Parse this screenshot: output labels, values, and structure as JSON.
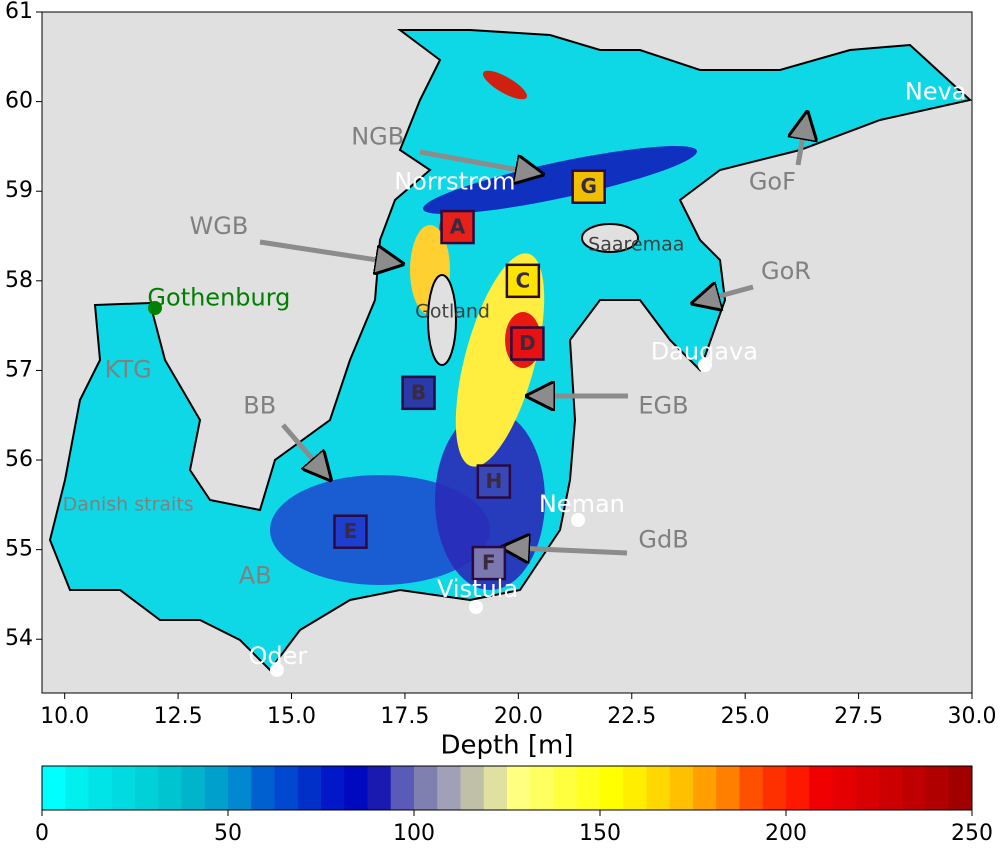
{
  "map": {
    "xlim": [
      9.5,
      30.0
    ],
    "ylim": [
      53.4,
      61.0
    ],
    "xticks": [
      {
        "value": 10,
        "label": "10.0"
      },
      {
        "value": 12.5,
        "label": "12.5"
      },
      {
        "value": 15,
        "label": "15.0"
      },
      {
        "value": 17.5,
        "label": "17.5"
      },
      {
        "value": 20,
        "label": "20.0"
      },
      {
        "value": 22.5,
        "label": "22.5"
      },
      {
        "value": 25,
        "label": "25.0"
      },
      {
        "value": 27.5,
        "label": "27.5"
      },
      {
        "value": 30,
        "label": "30.0"
      }
    ],
    "yticks": [
      54,
      55,
      56,
      57,
      58,
      59,
      60,
      61
    ],
    "labels": [
      {
        "text": "Neva",
        "lon": 29.2,
        "lat": 60.1,
        "color": "#ffffff"
      },
      {
        "text": "NGB",
        "lon": 16.9,
        "lat": 59.6,
        "color": "#808080"
      },
      {
        "text": "GoF",
        "lon": 25.6,
        "lat": 59.1,
        "color": "#808080"
      },
      {
        "text": "Norrstrom",
        "lon": 18.6,
        "lat": 59.1,
        "color": "#ffffff"
      },
      {
        "text": "WGB",
        "lon": 13.4,
        "lat": 58.6,
        "color": "#808080"
      },
      {
        "text": "Saaremaa",
        "lon": 22.6,
        "lat": 58.4,
        "color": "#404040"
      },
      {
        "text": "GoR",
        "lon": 25.9,
        "lat": 58.1,
        "color": "#808080"
      },
      {
        "text": "Gothenburg",
        "lon": 13.4,
        "lat": 57.8,
        "color": "#008000"
      },
      {
        "text": "Gotland",
        "lon": 18.55,
        "lat": 57.65,
        "color": "#404040"
      },
      {
        "text": "Daugava",
        "lon": 24.1,
        "lat": 57.2,
        "color": "#ffffff"
      },
      {
        "text": "KTG",
        "lon": 11.4,
        "lat": 57.0,
        "color": "#808080"
      },
      {
        "text": "BB",
        "lon": 14.3,
        "lat": 56.6,
        "color": "#808080"
      },
      {
        "text": "EGB",
        "lon": 23.2,
        "lat": 56.6,
        "color": "#808080"
      },
      {
        "text": "Danish straits",
        "lon": 11.4,
        "lat": 55.5,
        "color": "#808080"
      },
      {
        "text": "Neman",
        "lon": 21.4,
        "lat": 55.5,
        "color": "#ffffff"
      },
      {
        "text": "GdB",
        "lon": 23.2,
        "lat": 55.1,
        "color": "#808080"
      },
      {
        "text": "AB",
        "lon": 14.2,
        "lat": 54.7,
        "color": "#808080"
      },
      {
        "text": "Vistula",
        "lon": 19.1,
        "lat": 54.55,
        "color": "#ffffff"
      },
      {
        "text": "Oder",
        "lon": 14.7,
        "lat": 53.8,
        "color": "#ffffff"
      }
    ],
    "boxes": [
      {
        "text": "A",
        "lon": 18.66,
        "lat": 58.6,
        "fill": "#e8201a"
      },
      {
        "text": "B",
        "lon": 17.8,
        "lat": 56.75,
        "fill": "#2a3aa8"
      },
      {
        "text": "C",
        "lon": 20.1,
        "lat": 58.0,
        "fill": "#ffe400"
      },
      {
        "text": "D",
        "lon": 20.2,
        "lat": 57.3,
        "fill": "#e81010"
      },
      {
        "text": "E",
        "lon": 16.3,
        "lat": 55.2,
        "fill": "#1d3fd0"
      },
      {
        "text": "F",
        "lon": 19.35,
        "lat": 54.85,
        "fill": "#7b78b0"
      },
      {
        "text": "G",
        "lon": 21.55,
        "lat": 59.05,
        "fill": "#f0c000"
      },
      {
        "text": "H",
        "lon": 19.46,
        "lat": 55.76,
        "fill": "#3848b8"
      }
    ]
  },
  "colorbar": {
    "label": "Depth [m]",
    "lim": [
      0,
      250
    ],
    "ticks": [
      0,
      50,
      100,
      150,
      200,
      250
    ],
    "colors": [
      "#00ffff",
      "#00f0f0",
      "#00e4e8",
      "#00dae0",
      "#00d0d8",
      "#00c4d0",
      "#00b4cc",
      "#00a0cc",
      "#0088d0",
      "#0060d0",
      "#0048d0",
      "#0030c8",
      "#0018c8",
      "#0008c0",
      "#1a1ab0",
      "#5a5ab8",
      "#8080b0",
      "#a0a0b8",
      "#c0c0a8",
      "#e0e0a0",
      "#ffff80",
      "#ffff60",
      "#ffff40",
      "#ffff20",
      "#ffff00",
      "#ffee00",
      "#ffd800",
      "#ffc000",
      "#ffa000",
      "#ff8000",
      "#ff5000",
      "#ff3000",
      "#ff1800",
      "#f00000",
      "#e40000",
      "#d80000",
      "#cc0000",
      "#c00000",
      "#b00000",
      "#a00000"
    ]
  }
}
